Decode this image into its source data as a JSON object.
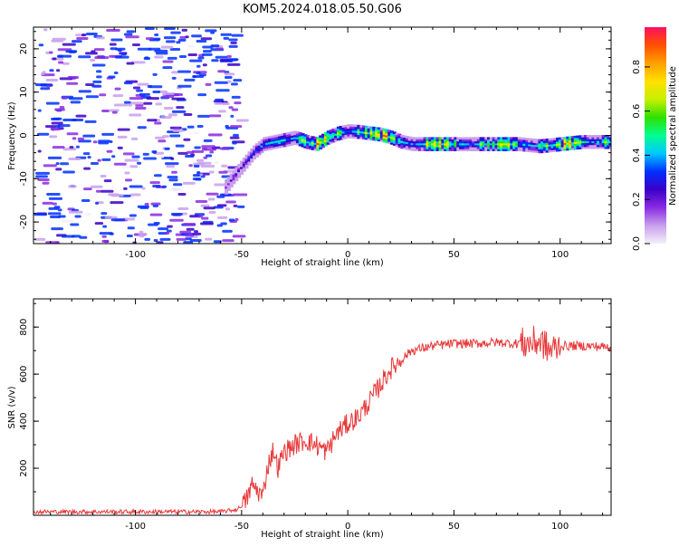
{
  "title": "KOM5.2024.018.05.50.G06",
  "colors": {
    "snr_line": "#e8393a",
    "axis": "#000000",
    "colorbar_stops": [
      "#f4f0fa",
      "#c9a0ec",
      "#8a2be2",
      "#3a00c8",
      "#0030ff",
      "#00c8ff",
      "#00ff90",
      "#30e000",
      "#c8f000",
      "#ffe000",
      "#ffa000",
      "#ff5000",
      "#ff1060"
    ]
  },
  "chart_data": [
    {
      "type": "heatmap",
      "xlabel": "Height of straight line (km)",
      "ylabel": "Frequency (Hz)",
      "xlim": [
        -148,
        124
      ],
      "ylim": [
        -25,
        25
      ],
      "xticks": [
        -100,
        -50,
        0,
        50,
        100
      ],
      "yticks": [
        -20,
        -10,
        0,
        10,
        20
      ],
      "colorbar": {
        "label": "Normalized spectral amplitude",
        "ticks": [
          "0.0",
          "0.2",
          "0.4",
          "0.6",
          "0.8"
        ],
        "range": [
          0,
          0.98
        ]
      },
      "ridge": {
        "x": [
          -58,
          -55,
          -50,
          -45,
          -40,
          -35,
          -30,
          -25,
          -20,
          -15,
          -10,
          -5,
          0,
          5,
          10,
          15,
          20,
          25,
          30,
          40,
          50,
          60,
          70,
          80,
          90,
          100,
          110,
          124
        ],
        "y": [
          -12,
          -10,
          -7,
          -4,
          -2,
          -1.5,
          -1,
          -0.5,
          -1.5,
          -2,
          -0.5,
          0.5,
          1,
          0.8,
          0.5,
          0.2,
          -0.5,
          -1.5,
          -2,
          -2,
          -2,
          -2,
          -2,
          -2,
          -2.5,
          -2,
          -1.5,
          -1.5
        ]
      }
    },
    {
      "type": "line",
      "xlabel": "Height of straight line (km)",
      "ylabel": "SNR (v/v)",
      "xlim": [
        -148,
        124
      ],
      "ylim": [
        0,
        920
      ],
      "xticks": [
        -100,
        -50,
        0,
        50,
        100
      ],
      "yticks": [
        200,
        400,
        600,
        800
      ],
      "series": [
        {
          "x": [
            -148,
            -100,
            -60,
            -52,
            -48,
            -45,
            -42,
            -40,
            -38,
            -35,
            -33,
            -30,
            -25,
            -20,
            -15,
            -10,
            -5,
            0,
            5,
            10,
            15,
            20,
            25,
            30,
            40,
            50,
            60,
            70,
            80,
            85,
            90,
            92,
            95,
            100,
            110,
            124
          ],
          "values": [
            15,
            15,
            15,
            25,
            60,
            130,
            100,
            80,
            200,
            280,
            200,
            270,
            300,
            320,
            300,
            270,
            350,
            390,
            420,
            480,
            550,
            620,
            660,
            700,
            720,
            730,
            730,
            735,
            730,
            730,
            740,
            730,
            700,
            720,
            720,
            715
          ]
        }
      ]
    }
  ]
}
